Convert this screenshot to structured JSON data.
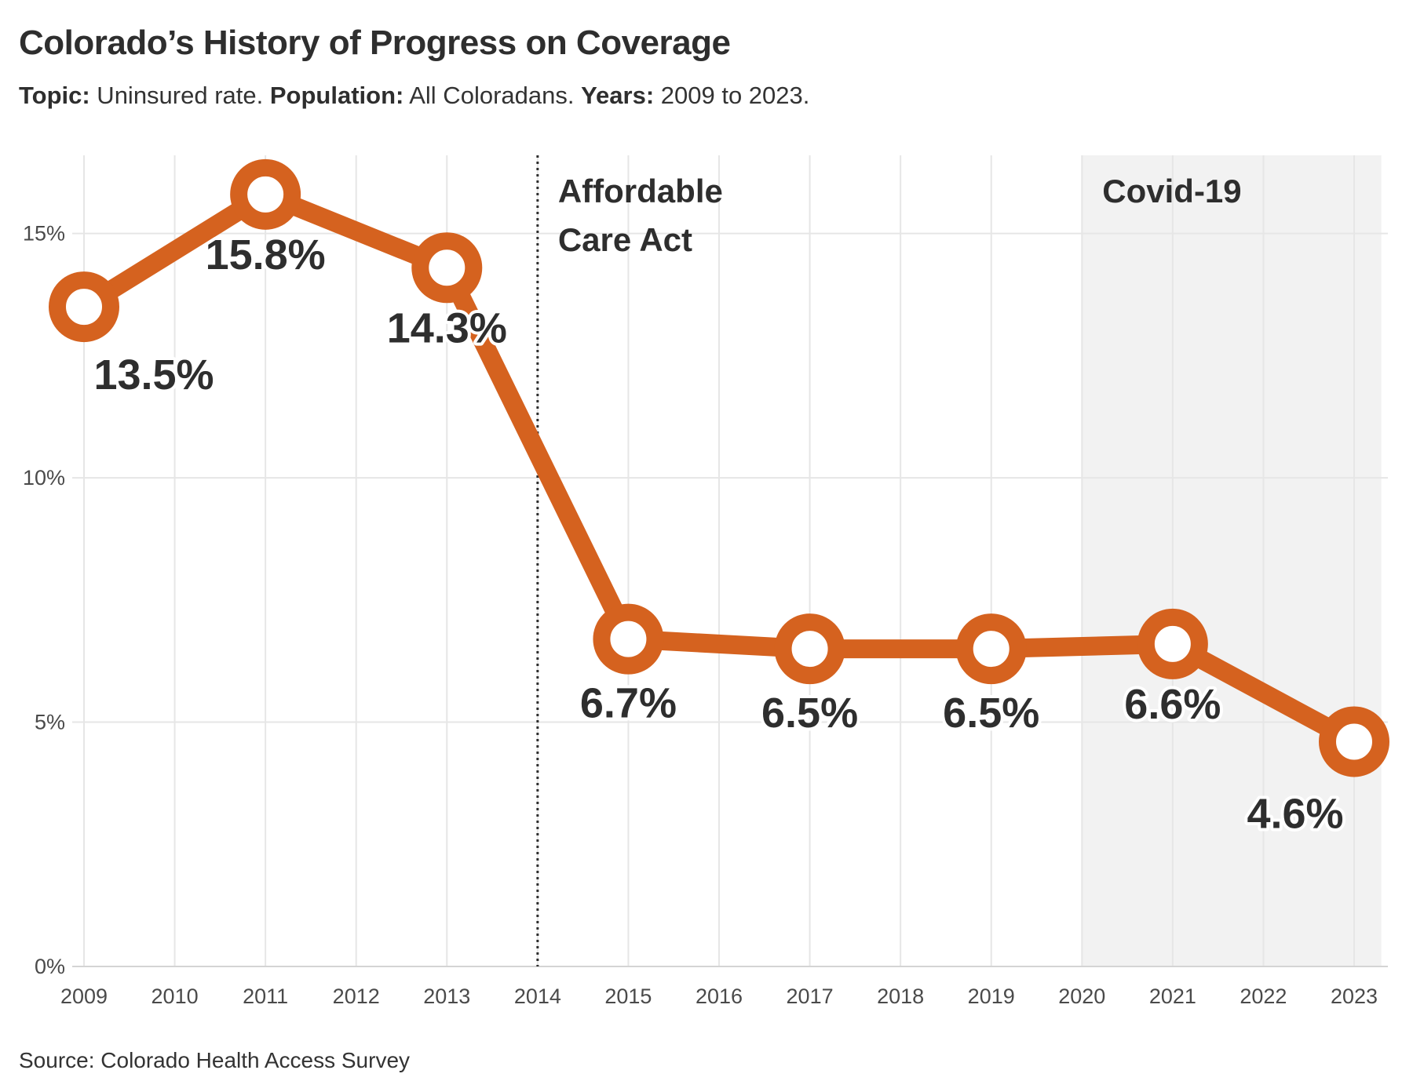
{
  "title": "Colorado’s History of Progress on Coverage",
  "subtitle": {
    "topic_label": "Topic:",
    "topic": " Uninsured rate. ",
    "population_label": "Population:",
    "population": " All Coloradans. ",
    "years_label": "Years:",
    "years": " 2009 to 2023."
  },
  "source": "Source: Colorado Health Access Survey",
  "colors": {
    "line": "#d5621f",
    "covid_band": "#f2f2f2",
    "grid": "#e6e6e6",
    "text": "#2e2e2e"
  },
  "chart_data": {
    "type": "line",
    "title": "Colorado’s History of Progress on Coverage",
    "x": [
      2009,
      2011,
      2013,
      2015,
      2017,
      2019,
      2021,
      2023
    ],
    "series": [
      {
        "values": [
          13.5,
          15.8,
          14.3,
          6.7,
          6.5,
          6.5,
          6.6,
          4.6
        ],
        "labels": [
          "13.5%",
          "15.8%",
          "14.3%",
          "6.7%",
          "6.5%",
          "6.5%",
          "6.6%",
          "4.6%"
        ]
      }
    ],
    "x_ticks": [
      "2009",
      "2010",
      "2011",
      "2012",
      "2013",
      "2014",
      "2015",
      "2016",
      "2017",
      "2018",
      "2019",
      "2020",
      "2021",
      "2022",
      "2023"
    ],
    "y_ticks": [
      {
        "value": 0,
        "label": "0%"
      },
      {
        "value": 5,
        "label": "5%"
      },
      {
        "value": 10,
        "label": "10%"
      },
      {
        "value": 15,
        "label": "15%"
      }
    ],
    "xlim": [
      2009,
      2023
    ],
    "ylim": [
      0,
      16.6
    ],
    "grid": true,
    "legend": "none",
    "annotations": [
      {
        "type": "vline",
        "x": 2014,
        "style": "dotted",
        "text": [
          "Affordable",
          "Care Act"
        ]
      },
      {
        "type": "band",
        "x_start": 2020,
        "x_end": 2023.3,
        "text": "Covid-19"
      }
    ]
  }
}
